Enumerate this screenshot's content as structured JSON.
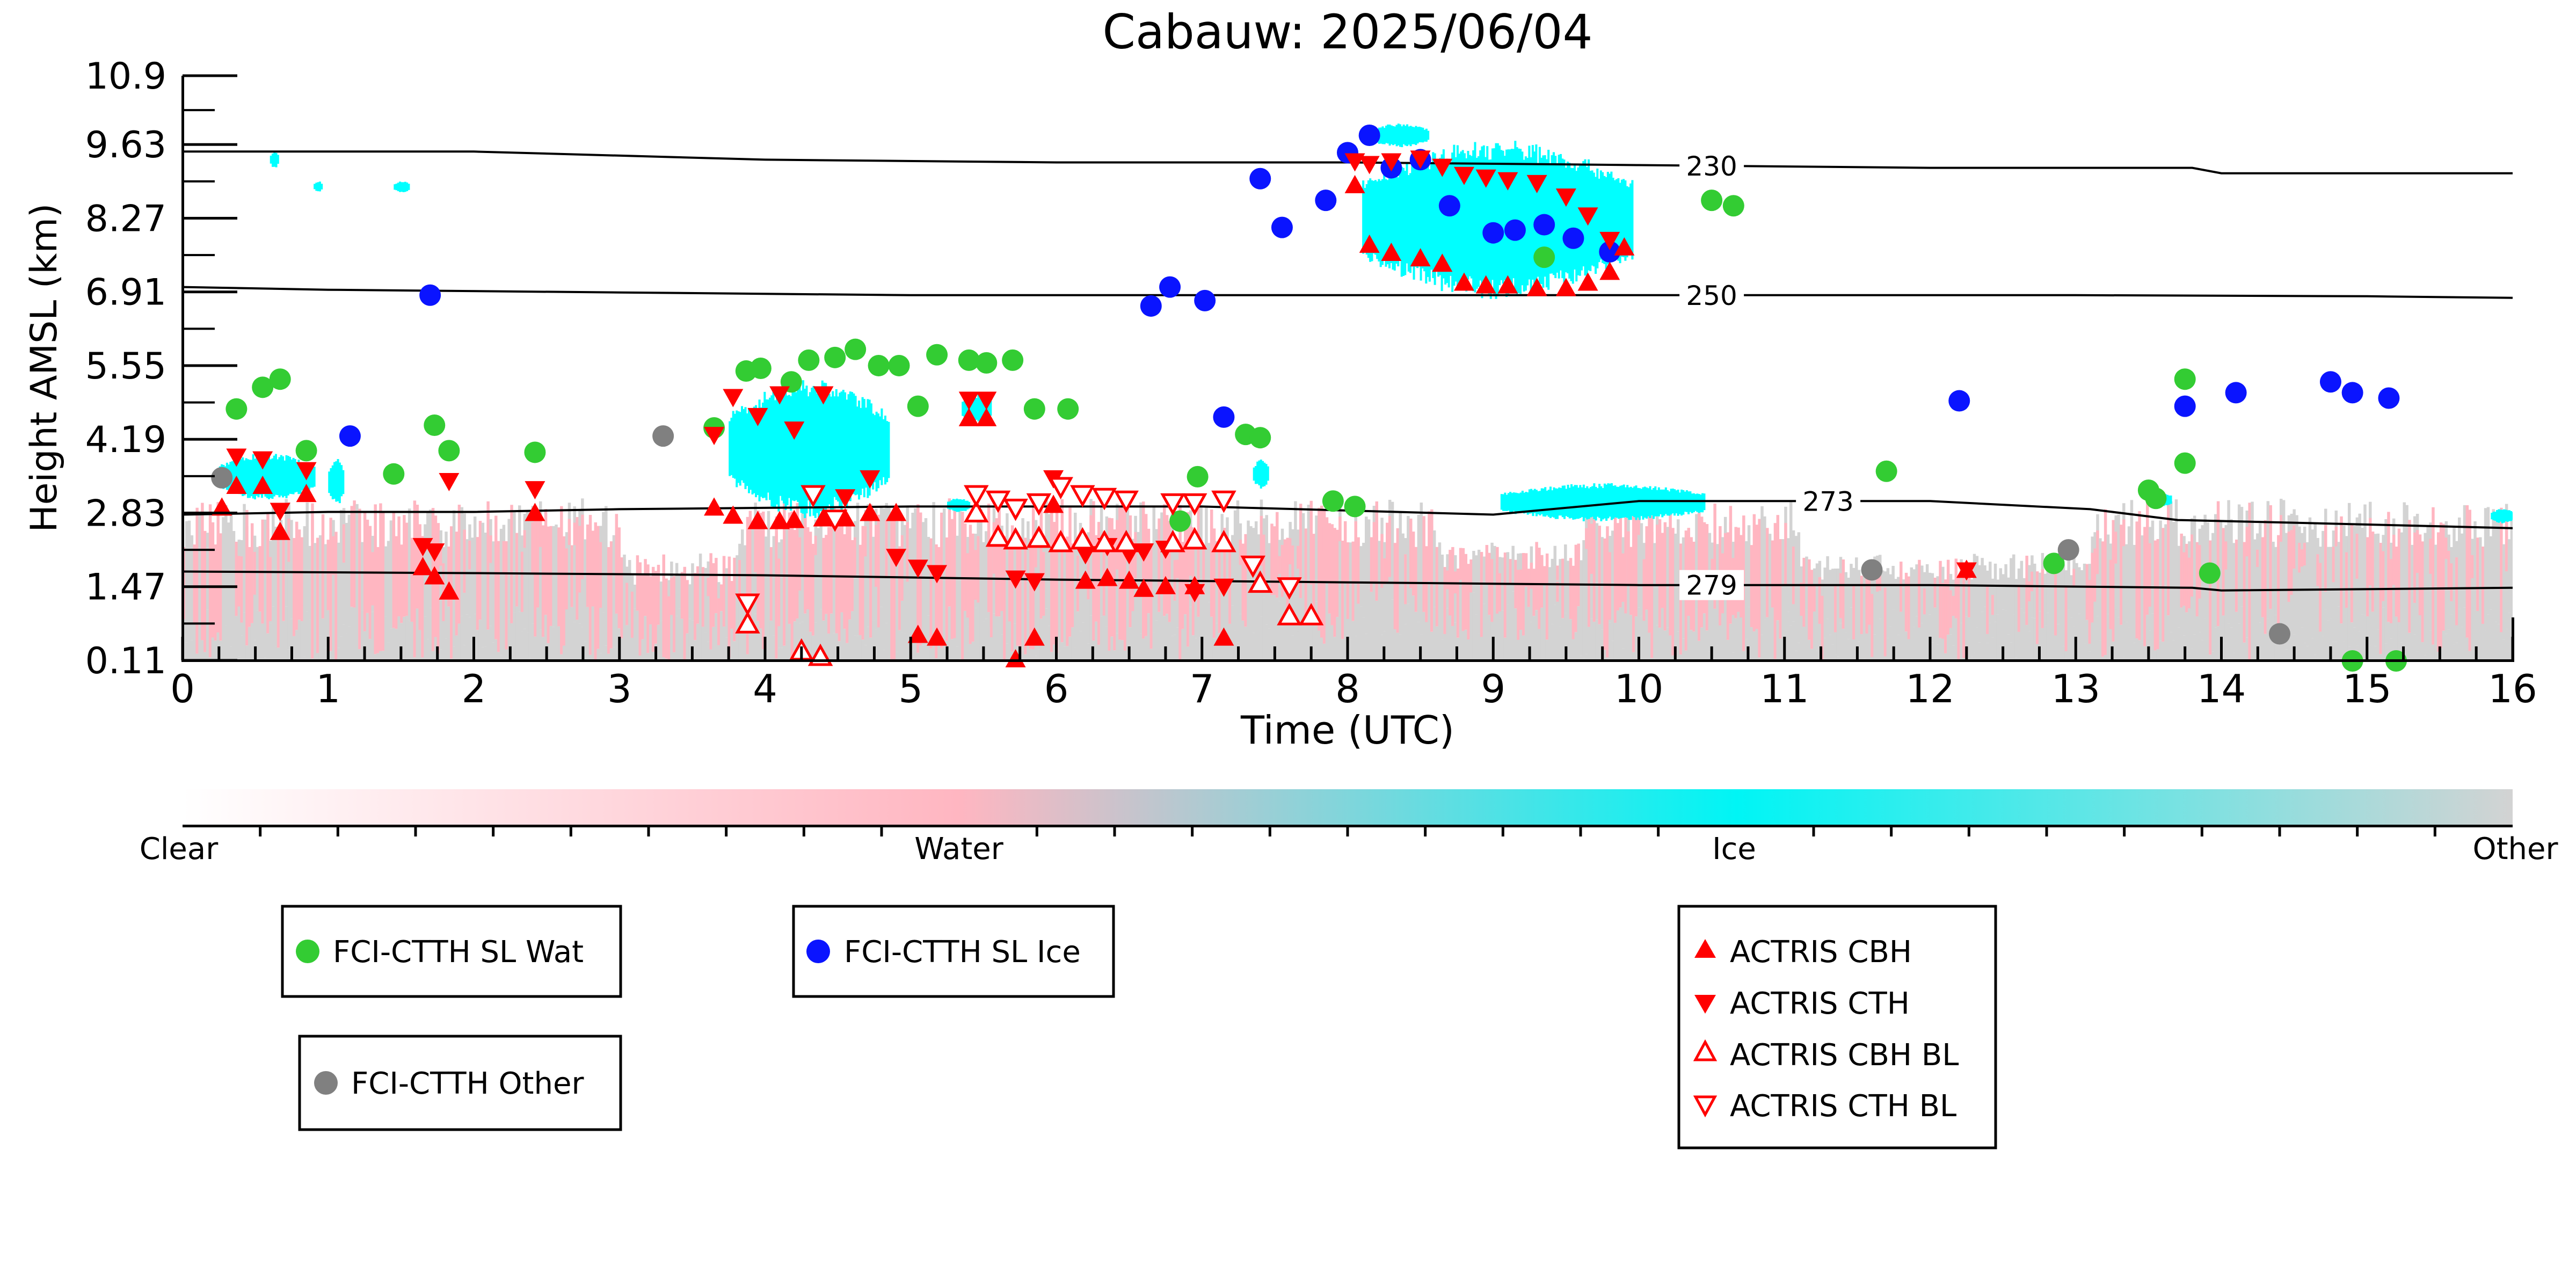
{
  "chart_data": {
    "type": "scatter",
    "title": "Cabauw: 2025/06/04",
    "xlabel": "Time (UTC)",
    "ylabel": "Height AMSL (km)",
    "xlim": [
      0,
      16
    ],
    "ylim": [
      0.11,
      10.9
    ],
    "xticks": [
      "0",
      "1",
      "2",
      "3",
      "4",
      "5",
      "6",
      "7",
      "8",
      "9",
      "10",
      "11",
      "12",
      "13",
      "14",
      "15",
      "16"
    ],
    "yticks": [
      "0.11",
      "1.47",
      "2.83",
      "4.19",
      "5.55",
      "6.91",
      "8.27",
      "9.63",
      "10.9"
    ],
    "ytick_values": [
      0.11,
      1.47,
      2.83,
      4.19,
      5.55,
      6.91,
      8.27,
      9.63,
      10.9
    ],
    "grid": false,
    "colors": {
      "clear": "#ffffff",
      "water": "#ffb6c1",
      "ice": "#00ffff",
      "other": "#d3d3d3",
      "wat_marker": "#33cc33",
      "ice_marker": "#0a14ff",
      "other_marker": "#808080",
      "actris": "#ff0000"
    },
    "colorbar": {
      "labels": [
        "Clear",
        "Water",
        "Ice",
        "Other"
      ]
    },
    "contours": [
      {
        "label": "230",
        "label_at": 10.5,
        "points": [
          [
            0,
            9.5
          ],
          [
            2,
            9.5
          ],
          [
            4,
            9.35
          ],
          [
            6,
            9.3
          ],
          [
            8,
            9.3
          ],
          [
            10,
            9.25
          ],
          [
            12,
            9.2
          ],
          [
            13.8,
            9.2
          ],
          [
            14,
            9.1
          ],
          [
            16,
            9.1
          ]
        ]
      },
      {
        "label": "250",
        "label_at": 10.5,
        "points": [
          [
            0,
            7.0
          ],
          [
            1,
            6.95
          ],
          [
            3,
            6.9
          ],
          [
            5,
            6.85
          ],
          [
            7,
            6.85
          ],
          [
            9,
            6.85
          ],
          [
            11,
            6.85
          ],
          [
            13,
            6.85
          ],
          [
            15,
            6.83
          ],
          [
            16,
            6.8
          ]
        ]
      },
      {
        "label": "273",
        "label_at": 11.3,
        "points": [
          [
            0,
            2.8
          ],
          [
            1,
            2.85
          ],
          [
            2,
            2.85
          ],
          [
            3,
            2.9
          ],
          [
            5,
            2.95
          ],
          [
            7,
            2.95
          ],
          [
            9,
            2.8
          ],
          [
            10,
            3.05
          ],
          [
            12,
            3.05
          ],
          [
            13.1,
            2.9
          ],
          [
            13.7,
            2.7
          ],
          [
            14.5,
            2.65
          ],
          [
            16,
            2.55
          ]
        ]
      },
      {
        "label": "279",
        "label_at": 10.5,
        "points": [
          [
            0,
            1.75
          ],
          [
            2,
            1.72
          ],
          [
            4,
            1.68
          ],
          [
            6,
            1.6
          ],
          [
            8,
            1.55
          ],
          [
            10,
            1.5
          ],
          [
            12,
            1.5
          ],
          [
            13.8,
            1.45
          ],
          [
            14,
            1.4
          ],
          [
            16,
            1.45
          ]
        ]
      }
    ],
    "series": [
      {
        "name": "FCI-CTTH SL Wat",
        "marker": "circle",
        "color": "#33cc33",
        "points": [
          [
            0.37,
            4.75
          ],
          [
            0.55,
            5.15
          ],
          [
            0.67,
            5.3
          ],
          [
            0.85,
            3.98
          ],
          [
            1.45,
            3.55
          ],
          [
            1.73,
            4.45
          ],
          [
            1.83,
            3.98
          ],
          [
            2.42,
            3.95
          ],
          [
            3.65,
            4.4
          ],
          [
            3.87,
            5.45
          ],
          [
            3.97,
            5.5
          ],
          [
            4.18,
            5.25
          ],
          [
            4.3,
            5.65
          ],
          [
            4.48,
            5.7
          ],
          [
            4.62,
            5.85
          ],
          [
            4.78,
            5.55
          ],
          [
            4.92,
            5.55
          ],
          [
            5.05,
            4.8
          ],
          [
            5.18,
            5.75
          ],
          [
            5.4,
            5.65
          ],
          [
            5.52,
            5.6
          ],
          [
            5.7,
            5.65
          ],
          [
            5.85,
            4.75
          ],
          [
            6.08,
            4.75
          ],
          [
            6.85,
            2.68
          ],
          [
            6.97,
            3.5
          ],
          [
            7.3,
            4.28
          ],
          [
            7.4,
            4.22
          ],
          [
            7.9,
            3.05
          ],
          [
            8.05,
            2.95
          ],
          [
            9.35,
            7.55
          ],
          [
            10.5,
            8.6
          ],
          [
            10.65,
            8.5
          ],
          [
            11.7,
            3.6
          ],
          [
            12.85,
            1.9
          ],
          [
            13.5,
            3.25
          ],
          [
            13.55,
            3.1
          ],
          [
            13.75,
            5.3
          ],
          [
            13.75,
            3.75
          ],
          [
            13.92,
            1.72
          ],
          [
            14.9,
            0.1
          ],
          [
            15.2,
            0.1
          ]
        ]
      },
      {
        "name": "FCI-CTTH SL Ice",
        "marker": "circle",
        "color": "#0a14ff",
        "points": [
          [
            1.15,
            4.25
          ],
          [
            1.7,
            6.85
          ],
          [
            6.65,
            6.65
          ],
          [
            6.78,
            7.0
          ],
          [
            7.02,
            6.75
          ],
          [
            7.15,
            4.6
          ],
          [
            7.4,
            9.0
          ],
          [
            7.55,
            8.1
          ],
          [
            7.85,
            8.6
          ],
          [
            8.0,
            9.48
          ],
          [
            8.15,
            9.8
          ],
          [
            8.3,
            9.2
          ],
          [
            8.5,
            9.35
          ],
          [
            8.7,
            8.5
          ],
          [
            9.0,
            8.0
          ],
          [
            9.15,
            8.05
          ],
          [
            9.35,
            8.15
          ],
          [
            9.55,
            7.9
          ],
          [
            9.8,
            7.65
          ],
          [
            12.2,
            4.9
          ],
          [
            13.75,
            4.8
          ],
          [
            14.1,
            5.05
          ],
          [
            14.75,
            5.25
          ],
          [
            14.9,
            5.05
          ],
          [
            15.15,
            4.95
          ]
        ]
      },
      {
        "name": "FCI-CTTH Other",
        "marker": "circle",
        "color": "#808080",
        "points": [
          [
            0.27,
            3.48
          ],
          [
            3.3,
            4.25
          ],
          [
            11.6,
            1.78
          ],
          [
            12.95,
            2.15
          ],
          [
            14.4,
            0.6
          ]
        ]
      },
      {
        "name": "ACTRIS CBH",
        "marker": "triangle-up",
        "color": "#ff0000",
        "filled": true,
        "points": [
          [
            0.27,
            2.95
          ],
          [
            0.37,
            3.35
          ],
          [
            0.55,
            3.35
          ],
          [
            0.67,
            2.5
          ],
          [
            0.85,
            3.2
          ],
          [
            1.65,
            1.85
          ],
          [
            1.73,
            1.68
          ],
          [
            1.83,
            1.4
          ],
          [
            2.42,
            2.85
          ],
          [
            3.65,
            2.95
          ],
          [
            3.78,
            2.8
          ],
          [
            3.95,
            2.7
          ],
          [
            4.1,
            2.7
          ],
          [
            4.2,
            2.72
          ],
          [
            4.4,
            2.75
          ],
          [
            4.55,
            2.75
          ],
          [
            4.72,
            2.85
          ],
          [
            4.9,
            2.85
          ],
          [
            5.05,
            0.6
          ],
          [
            5.18,
            0.55
          ],
          [
            5.4,
            4.6
          ],
          [
            5.52,
            4.6
          ],
          [
            5.72,
            0.15
          ],
          [
            5.85,
            0.55
          ],
          [
            5.98,
            3.0
          ],
          [
            6.2,
            1.6
          ],
          [
            6.35,
            1.65
          ],
          [
            6.5,
            1.6
          ],
          [
            6.6,
            1.45
          ],
          [
            6.75,
            1.5
          ],
          [
            6.95,
            1.5
          ],
          [
            7.15,
            0.55
          ],
          [
            8.05,
            8.9
          ],
          [
            8.15,
            7.8
          ],
          [
            8.3,
            7.65
          ],
          [
            8.5,
            7.55
          ],
          [
            8.65,
            7.45
          ],
          [
            8.8,
            7.1
          ],
          [
            8.95,
            7.05
          ],
          [
            9.1,
            7.05
          ],
          [
            9.3,
            7.0
          ],
          [
            9.5,
            7.0
          ],
          [
            9.65,
            7.1
          ],
          [
            9.8,
            7.3
          ],
          [
            9.9,
            7.75
          ],
          [
            12.25,
            1.8
          ]
        ]
      },
      {
        "name": "ACTRIS CTH",
        "marker": "triangle-down",
        "color": "#ff0000",
        "filled": true,
        "points": [
          [
            0.37,
            3.85
          ],
          [
            0.55,
            3.8
          ],
          [
            0.67,
            2.85
          ],
          [
            0.85,
            3.6
          ],
          [
            1.65,
            2.2
          ],
          [
            1.73,
            2.1
          ],
          [
            1.83,
            3.4
          ],
          [
            2.42,
            3.25
          ],
          [
            3.65,
            4.25
          ],
          [
            3.78,
            4.95
          ],
          [
            3.95,
            4.6
          ],
          [
            4.1,
            5.0
          ],
          [
            4.2,
            4.35
          ],
          [
            4.4,
            5.0
          ],
          [
            4.55,
            3.1
          ],
          [
            4.72,
            3.45
          ],
          [
            4.9,
            2.0
          ],
          [
            5.05,
            1.8
          ],
          [
            5.18,
            1.7
          ],
          [
            5.4,
            4.9
          ],
          [
            5.52,
            4.9
          ],
          [
            5.72,
            1.6
          ],
          [
            5.85,
            1.55
          ],
          [
            5.98,
            3.45
          ],
          [
            6.2,
            2.05
          ],
          [
            6.35,
            2.2
          ],
          [
            6.5,
            2.05
          ],
          [
            6.6,
            2.1
          ],
          [
            6.75,
            2.15
          ],
          [
            6.95,
            1.35
          ],
          [
            7.15,
            1.45
          ],
          [
            8.05,
            9.3
          ],
          [
            8.15,
            9.25
          ],
          [
            8.3,
            9.3
          ],
          [
            8.5,
            9.35
          ],
          [
            8.65,
            9.2
          ],
          [
            8.8,
            9.05
          ],
          [
            8.95,
            9.0
          ],
          [
            9.1,
            8.95
          ],
          [
            9.3,
            8.9
          ],
          [
            9.5,
            8.65
          ],
          [
            9.65,
            8.3
          ],
          [
            9.8,
            7.85
          ],
          [
            12.25,
            1.75
          ]
        ]
      },
      {
        "name": "ACTRIS CBH BL",
        "marker": "triangle-up",
        "color": "#ff0000",
        "filled": false,
        "points": [
          [
            3.88,
            0.8
          ],
          [
            4.25,
            0.3
          ],
          [
            4.38,
            0.2
          ],
          [
            5.45,
            2.85
          ],
          [
            5.6,
            2.4
          ],
          [
            5.72,
            2.35
          ],
          [
            5.88,
            2.38
          ],
          [
            6.03,
            2.3
          ],
          [
            6.18,
            2.35
          ],
          [
            6.33,
            2.3
          ],
          [
            6.48,
            2.3
          ],
          [
            6.8,
            2.3
          ],
          [
            6.95,
            2.35
          ],
          [
            7.15,
            2.3
          ],
          [
            7.4,
            1.55
          ],
          [
            7.6,
            0.95
          ],
          [
            7.75,
            0.95
          ]
        ]
      },
      {
        "name": "ACTRIS CTH BL",
        "marker": "triangle-down",
        "color": "#ff0000",
        "filled": false,
        "points": [
          [
            3.88,
            1.15
          ],
          [
            4.33,
            3.15
          ],
          [
            4.48,
            2.7
          ],
          [
            5.45,
            3.15
          ],
          [
            5.6,
            3.05
          ],
          [
            5.72,
            2.9
          ],
          [
            5.88,
            3.0
          ],
          [
            6.03,
            3.3
          ],
          [
            6.18,
            3.15
          ],
          [
            6.33,
            3.1
          ],
          [
            6.48,
            3.05
          ],
          [
            6.8,
            3.0
          ],
          [
            6.95,
            3.0
          ],
          [
            7.15,
            3.05
          ],
          [
            7.35,
            1.85
          ],
          [
            7.6,
            1.45
          ]
        ]
      }
    ]
  }
}
